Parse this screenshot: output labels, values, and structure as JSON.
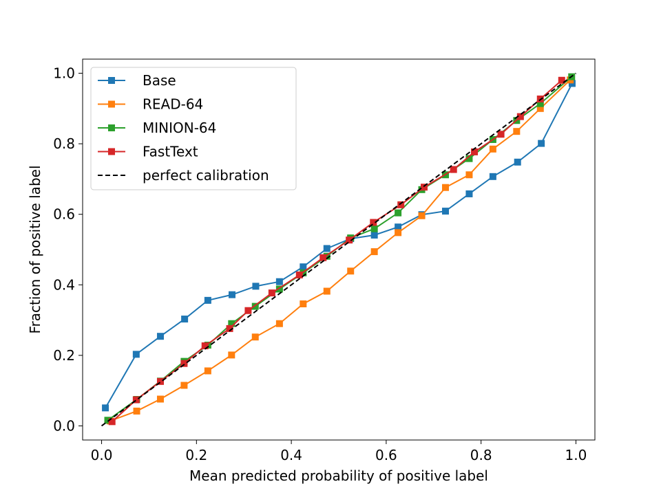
{
  "chart_data": {
    "type": "line",
    "title": "",
    "xlabel": "Mean predicted probability of positive label",
    "ylabel": "Fraction of positive label",
    "xlim": [
      -0.04,
      1.04
    ],
    "ylim": [
      -0.04,
      1.04
    ],
    "xticks": [
      0.0,
      0.2,
      0.4,
      0.6,
      0.8,
      1.0
    ],
    "yticks": [
      0.0,
      0.2,
      0.4,
      0.6,
      0.8,
      1.0
    ],
    "xtick_labels": [
      "0.0",
      "0.2",
      "0.4",
      "0.6",
      "0.8",
      "1.0"
    ],
    "ytick_labels": [
      "0.0",
      "0.2",
      "0.4",
      "0.6",
      "0.8",
      "1.0"
    ],
    "grid": false,
    "legend_position": "top-left",
    "series": [
      {
        "name": "Base",
        "color": "#1f77b4",
        "marker": "square",
        "x": [
          0.008,
          0.073,
          0.124,
          0.175,
          0.224,
          0.275,
          0.325,
          0.375,
          0.425,
          0.475,
          0.525,
          0.575,
          0.625,
          0.675,
          0.725,
          0.775,
          0.825,
          0.877,
          0.927,
          0.992
        ],
        "y": [
          0.051,
          0.203,
          0.254,
          0.303,
          0.356,
          0.372,
          0.396,
          0.409,
          0.451,
          0.503,
          0.531,
          0.541,
          0.564,
          0.599,
          0.609,
          0.658,
          0.707,
          0.748,
          0.801,
          0.971
        ]
      },
      {
        "name": "READ-64",
        "color": "#ff7f0e",
        "marker": "square",
        "x": [
          0.018,
          0.074,
          0.124,
          0.174,
          0.224,
          0.274,
          0.324,
          0.375,
          0.425,
          0.475,
          0.525,
          0.575,
          0.625,
          0.675,
          0.725,
          0.775,
          0.825,
          0.875,
          0.925,
          0.988
        ],
        "y": [
          0.014,
          0.042,
          0.076,
          0.115,
          0.156,
          0.201,
          0.252,
          0.29,
          0.346,
          0.382,
          0.439,
          0.494,
          0.548,
          0.596,
          0.676,
          0.712,
          0.785,
          0.835,
          0.9,
          0.981
        ]
      },
      {
        "name": "MINION-64",
        "color": "#2ca02c",
        "marker": "square",
        "x": [
          0.013,
          0.074,
          0.124,
          0.174,
          0.224,
          0.274,
          0.324,
          0.375,
          0.425,
          0.475,
          0.525,
          0.575,
          0.625,
          0.675,
          0.725,
          0.775,
          0.825,
          0.875,
          0.925,
          0.991
        ],
        "y": [
          0.016,
          0.075,
          0.127,
          0.183,
          0.229,
          0.29,
          0.339,
          0.388,
          0.434,
          0.481,
          0.533,
          0.559,
          0.604,
          0.67,
          0.712,
          0.758,
          0.812,
          0.866,
          0.914,
          0.99
        ]
      },
      {
        "name": "FastText",
        "color": "#d62728",
        "marker": "square",
        "x": [
          0.022,
          0.073,
          0.124,
          0.174,
          0.218,
          0.27,
          0.309,
          0.359,
          0.417,
          0.467,
          0.522,
          0.573,
          0.631,
          0.68,
          0.742,
          0.786,
          0.842,
          0.883,
          0.925,
          0.97
        ],
        "y": [
          0.012,
          0.074,
          0.126,
          0.177,
          0.227,
          0.276,
          0.327,
          0.377,
          0.428,
          0.477,
          0.527,
          0.577,
          0.627,
          0.677,
          0.727,
          0.777,
          0.827,
          0.877,
          0.927,
          0.98
        ]
      },
      {
        "name": "perfect calibration",
        "color": "#000000",
        "marker": "none",
        "dashed": true,
        "x": [
          0.0,
          1.0
        ],
        "y": [
          0.0,
          1.0
        ]
      }
    ]
  }
}
